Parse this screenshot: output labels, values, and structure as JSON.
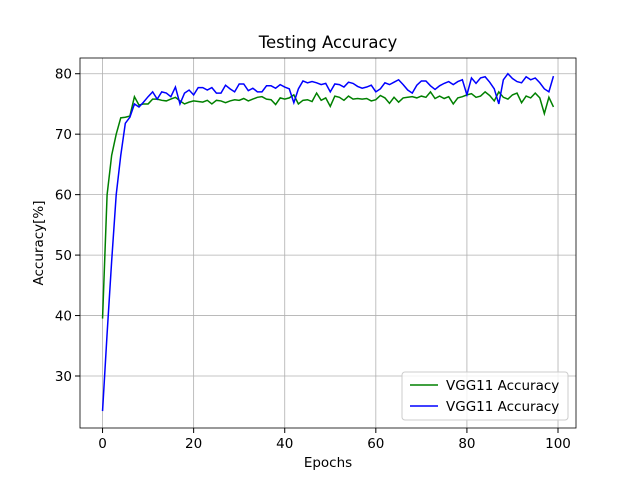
{
  "chart_data": {
    "type": "line",
    "title": "Testing Accuracy",
    "x_label": "Epochs",
    "y_label": "Accuracy[%]",
    "x": [
      0,
      1,
      2,
      3,
      4,
      5,
      6,
      7,
      8,
      9,
      10,
      11,
      12,
      13,
      14,
      15,
      16,
      17,
      18,
      19,
      20,
      21,
      22,
      23,
      24,
      25,
      26,
      27,
      28,
      29,
      30,
      31,
      32,
      33,
      34,
      35,
      36,
      37,
      38,
      39,
      40,
      41,
      42,
      43,
      44,
      45,
      46,
      47,
      48,
      49,
      50,
      51,
      52,
      53,
      54,
      55,
      56,
      57,
      58,
      59,
      60,
      61,
      62,
      63,
      64,
      65,
      66,
      67,
      68,
      69,
      70,
      71,
      72,
      73,
      74,
      75,
      76,
      77,
      78,
      79,
      80,
      81,
      82,
      83,
      84,
      85,
      86,
      87,
      88,
      89,
      90,
      91,
      92,
      93,
      94,
      95,
      96,
      97,
      98,
      99
    ],
    "series": [
      {
        "name": "VGG11 Accuracy",
        "color": "#008000",
        "values": [
          39.5,
          60,
          66.5,
          70,
          72.7,
          72.8,
          73,
          76.2,
          74.8,
          75,
          75,
          75.8,
          75.8,
          75.6,
          75.5,
          75.8,
          76.1,
          75.5,
          75,
          75.3,
          75.5,
          75.4,
          75.3,
          75.6,
          75,
          75.6,
          75.5,
          75.2,
          75.5,
          75.7,
          75.6,
          75.9,
          75.5,
          75.8,
          76.1,
          76.2,
          75.8,
          75.7,
          74.9,
          76,
          75.8,
          76,
          76.5,
          75,
          75.6,
          75.7,
          75.4,
          76.8,
          75.6,
          76,
          74.6,
          76.3,
          76.1,
          75.6,
          76.3,
          75.8,
          75.9,
          75.8,
          75.9,
          75.5,
          75.7,
          76.4,
          76,
          75.1,
          76.1,
          75.3,
          76,
          76.1,
          76.2,
          76,
          76.3,
          76.1,
          77,
          75.9,
          76.3,
          75.9,
          76.2,
          75,
          76,
          76.2,
          76.5,
          76.7,
          76.1,
          76.3,
          77,
          76.4,
          75.5,
          77,
          76.1,
          75.8,
          76.5,
          76.8,
          75.2,
          76.3,
          76,
          76.8,
          76,
          73.4,
          76.1,
          74.5
        ]
      },
      {
        "name": "VGG11 Accuracy",
        "color": "#0000ff",
        "values": [
          24.2,
          37,
          49,
          60,
          66.5,
          71.8,
          72.8,
          75,
          74.5,
          75.3,
          76.2,
          77,
          75.8,
          77,
          76.8,
          76.2,
          77.8,
          75,
          76.8,
          77.3,
          76.5,
          77.7,
          77.7,
          77.3,
          77.7,
          76.8,
          76.8,
          78.1,
          77.5,
          77,
          78.3,
          78.3,
          77.2,
          77.6,
          77,
          77,
          78,
          78,
          77.6,
          78.2,
          77.8,
          77.5,
          75.2,
          77.5,
          78.8,
          78.5,
          78.7,
          78.5,
          78.2,
          78.4,
          77,
          78.3,
          78.2,
          77.8,
          78.6,
          78.4,
          77.9,
          77.6,
          77.8,
          78.1,
          77,
          77.5,
          78.5,
          78.2,
          78.6,
          79,
          78.2,
          77.3,
          76.8,
          78.1,
          78.8,
          78.8,
          78,
          77.4,
          78,
          78.4,
          78.7,
          78.2,
          78.7,
          79,
          76.5,
          79.3,
          78.4,
          79.3,
          79.5,
          78.6,
          77.5,
          75,
          79,
          80,
          79.2,
          78.7,
          78.5,
          79.5,
          79,
          79.3,
          78.5,
          77.5,
          77,
          79.6
        ]
      }
    ],
    "xlim": [
      -4.95,
      103.95
    ],
    "ylim": [
      21.4,
      82.6
    ],
    "xticks": [
      0,
      20,
      40,
      60,
      80,
      100
    ],
    "yticks": [
      30,
      40,
      50,
      60,
      70,
      80
    ],
    "grid": true,
    "legend": "lower right"
  }
}
